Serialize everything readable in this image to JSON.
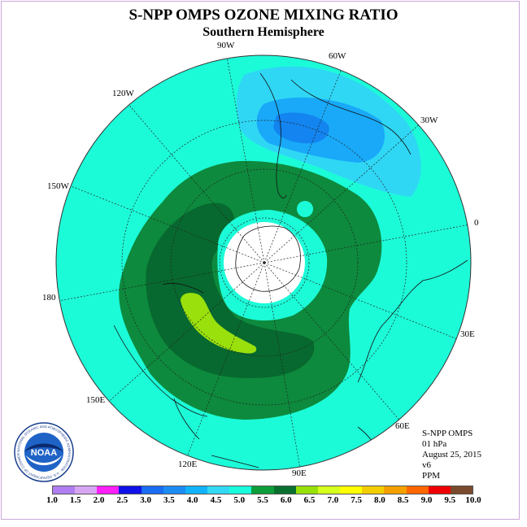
{
  "title": "S-NPP OMPS OZONE MIXING RATIO",
  "subtitle": "Southern Hemisphere",
  "longitude_labels": {
    "w90": "90W",
    "w60": "60W",
    "w30": "30W",
    "w120": "120W",
    "w150": "150W",
    "lon0": "0",
    "lon180": "180",
    "e30": "30E",
    "e60": "60E",
    "e90": "90E",
    "e120": "120E",
    "e150": "150E"
  },
  "info": {
    "instrument": "S-NPP OMPS",
    "level": "01 hPa",
    "date": "August 25, 2015",
    "version": "v6",
    "units": "PPM"
  },
  "logo": {
    "text": "NOAA",
    "ring_text": "NATIONAL OCEANIC AND ATMOSPHERIC ADMINISTRATION · U.S. DEPARTMENT OF COMMERCE"
  },
  "colorbar": {
    "ticks": [
      "1.0",
      "1.5",
      "2.0",
      "2.5",
      "3.0",
      "3.5",
      "4.0",
      "4.5",
      "5.0",
      "5.5",
      "6.0",
      "6.5",
      "7.0",
      "7.5",
      "8.0",
      "8.5",
      "9.0",
      "9.5",
      "10.0"
    ],
    "colors": [
      "#b07ef0",
      "#d7a6f3",
      "#ff1ff8",
      "#1010e8",
      "#1a6cf0",
      "#1c8cf4",
      "#12b3fb",
      "#33d9f4",
      "#19fddc",
      "#0d9e3a",
      "#08702f",
      "#97e00a",
      "#d5ff1c",
      "#ffff00",
      "#f2cd00",
      "#f4a000",
      "#ff6600",
      "#ee0000",
      "#7a4a2c"
    ]
  },
  "map_colors": {
    "background": "#1cfbd8",
    "dark_green": "#0d8a3d",
    "darker_green": "#07692f",
    "lime": "#9ae00c",
    "cyan_light": "#2fd7f5",
    "blue_mid": "#19a9f8",
    "blue_dark": "#1384f0",
    "pole_hole": "#ffffff"
  }
}
